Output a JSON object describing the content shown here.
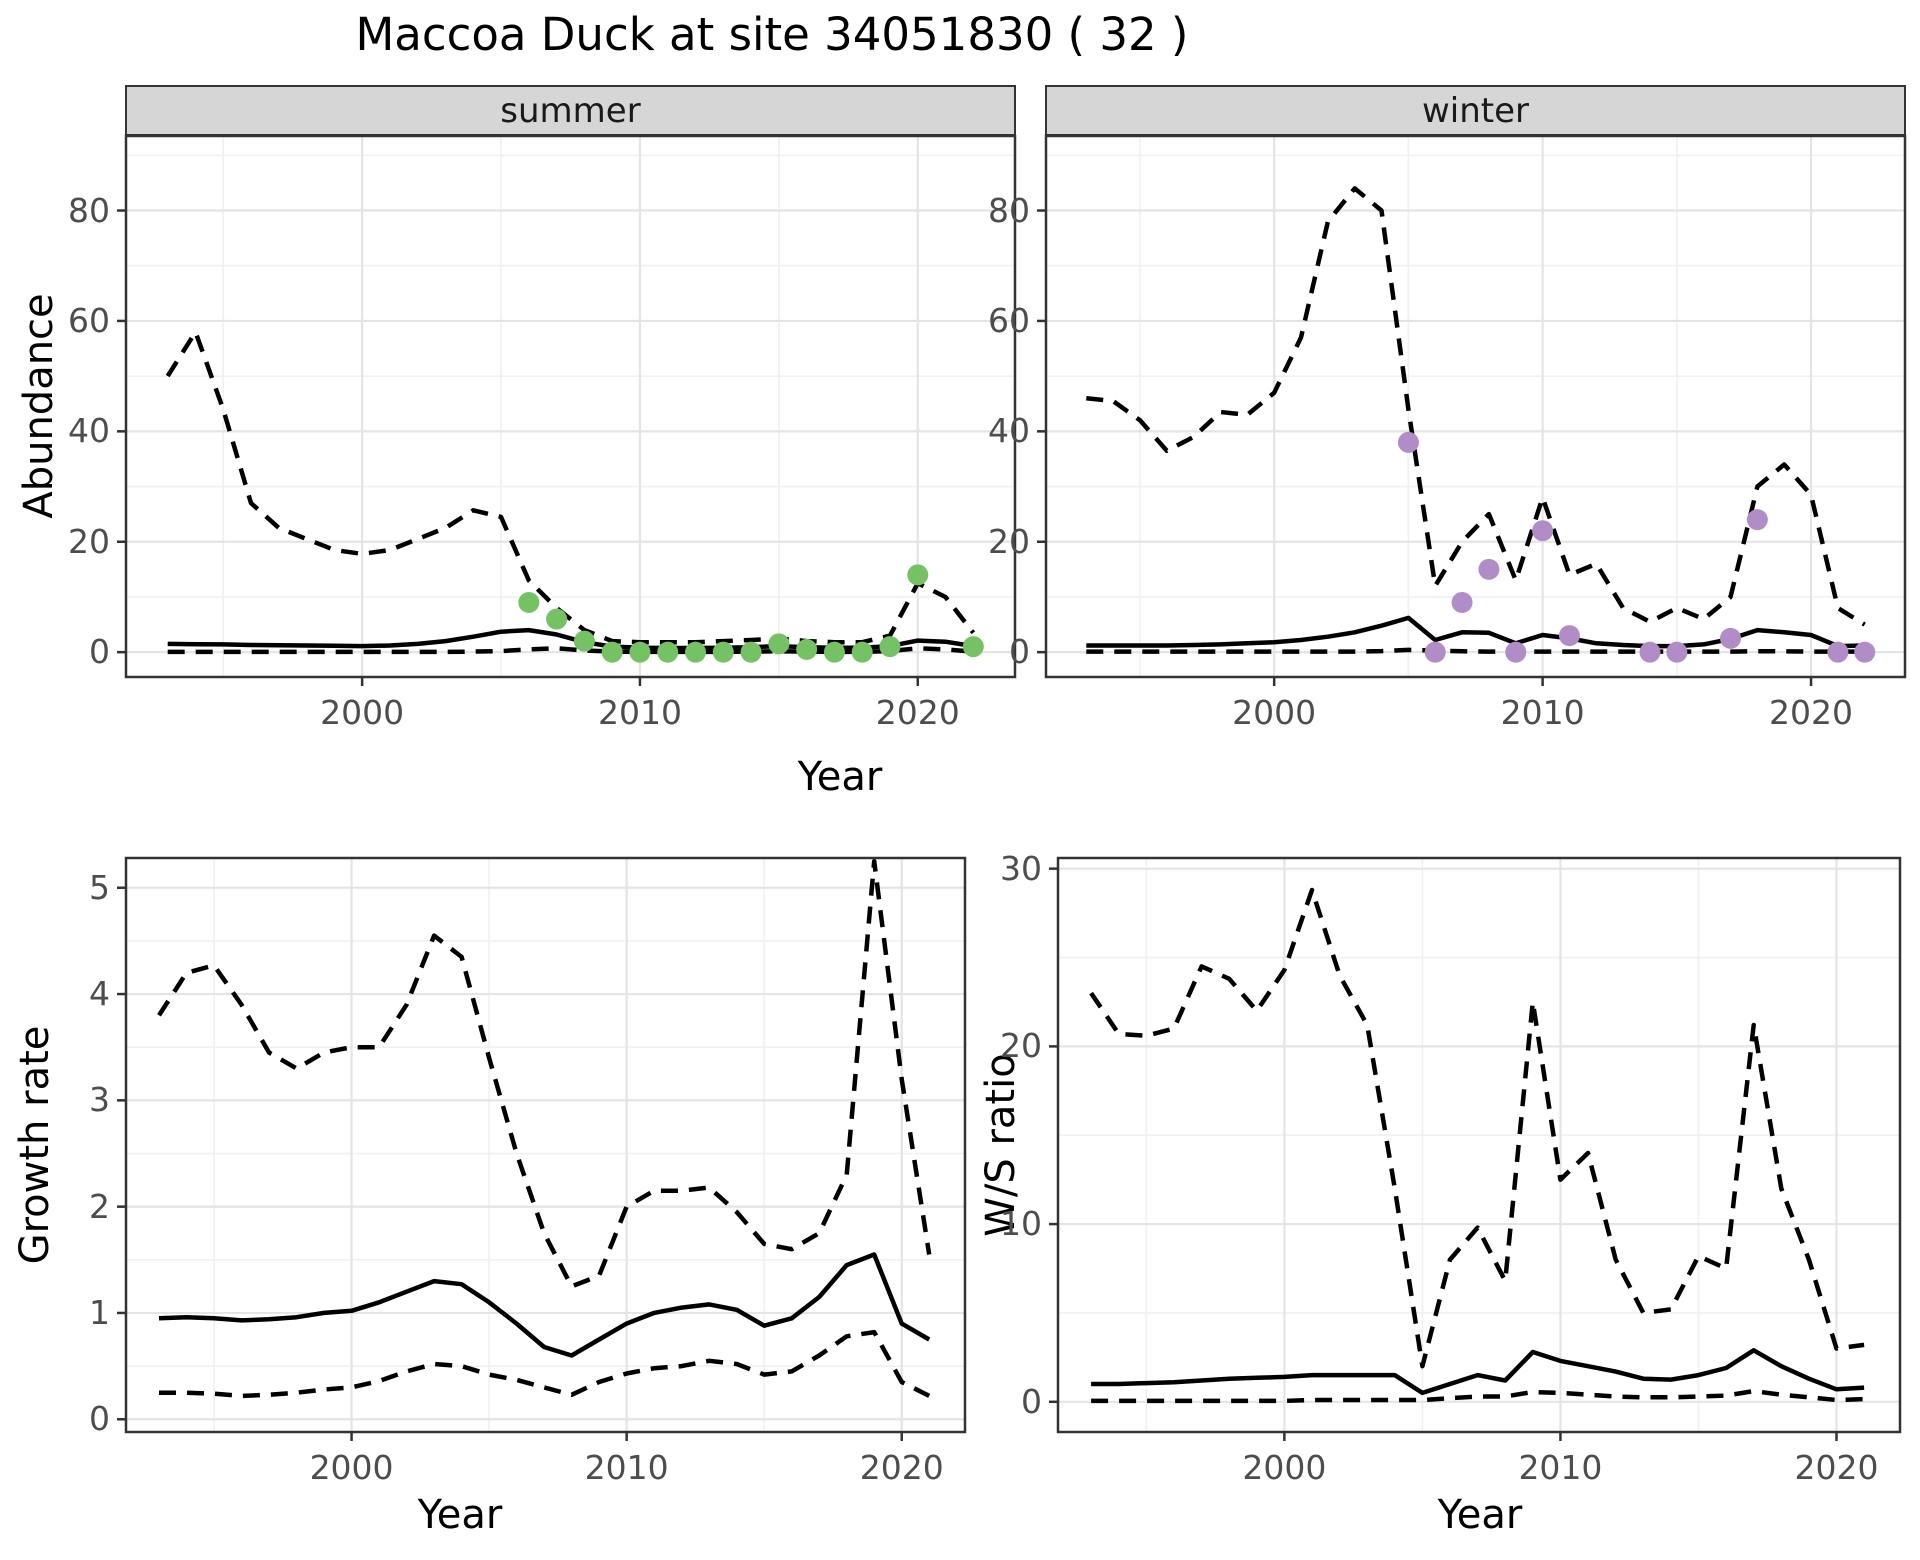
{
  "title": "Maccoa Duck at site 34051830 ( 32 )",
  "facets": {
    "summer_label": "summer",
    "winter_label": "winter"
  },
  "axis_titles": {
    "abundance": "Abundance",
    "year_top": "Year",
    "growth": "Growth rate",
    "ws": "W/S ratio",
    "year_bottom_left": "Year",
    "year_bottom_right": "Year"
  },
  "colors": {
    "summer_point": "#74c263",
    "winter_point": "#b18dc7",
    "line": "#000000",
    "grid_major": "#e4e4e4",
    "grid_minor": "#f0f0f0",
    "strip_bg": "#d6d6d6",
    "panel_border": "#333333",
    "tick_text": "#4d4d4d"
  },
  "chart_data": [
    {
      "id": "abundance_summer",
      "type": "line",
      "facet": "summer",
      "ylabel": "Abundance",
      "xlabel": "Year",
      "xlim": [
        1991.5,
        2023.5
      ],
      "ylim": [
        -4.5,
        93.5
      ],
      "xticks": [
        2000,
        2010,
        2020
      ],
      "xticks_minor": [
        1995,
        2005,
        2015
      ],
      "yticks": [
        0,
        20,
        40,
        60,
        80
      ],
      "yticks_minor": [
        10,
        30,
        50,
        70,
        90
      ],
      "x": [
        1993,
        1994,
        1995,
        1996,
        1997,
        1998,
        1999,
        2000,
        2001,
        2002,
        2003,
        2004,
        2005,
        2006,
        2007,
        2008,
        2009,
        2010,
        2011,
        2012,
        2013,
        2014,
        2015,
        2016,
        2017,
        2018,
        2019,
        2020,
        2021,
        2022
      ],
      "series": [
        {
          "name": "upper_ci",
          "style": "dashed",
          "values": [
            50,
            58,
            44,
            27,
            22.5,
            20.5,
            18.5,
            17.8,
            18.5,
            20.5,
            22.5,
            25.7,
            24.5,
            13,
            8,
            4,
            2,
            1.8,
            1.8,
            1.8,
            2,
            2.2,
            2.5,
            2,
            1.8,
            1.8,
            3,
            12.5,
            10,
            3.5
          ]
        },
        {
          "name": "median",
          "style": "solid",
          "values": [
            1.5,
            1.45,
            1.4,
            1.3,
            1.25,
            1.2,
            1.15,
            1.1,
            1.2,
            1.5,
            2,
            2.8,
            3.7,
            4,
            3.2,
            1.8,
            1,
            0.8,
            0.75,
            0.75,
            0.8,
            0.9,
            1.1,
            0.9,
            0.8,
            0.8,
            1.1,
            2.1,
            1.9,
            1.1
          ]
        },
        {
          "name": "lower_ci",
          "style": "dashed",
          "values": [
            0.05,
            0.05,
            0.05,
            0.05,
            0.05,
            0.05,
            0.05,
            0.05,
            0.05,
            0.05,
            0.05,
            0.1,
            0.2,
            0.5,
            0.7,
            0.3,
            0.1,
            0.05,
            0.05,
            0.05,
            0.05,
            0.1,
            0.15,
            0.1,
            0.05,
            0.05,
            0.2,
            0.7,
            0.5,
            0.1
          ]
        }
      ],
      "points": {
        "name": "observed_counts_summer",
        "color": "#74c263",
        "data": [
          [
            2006,
            9
          ],
          [
            2007,
            6
          ],
          [
            2008,
            2
          ],
          [
            2009,
            0
          ],
          [
            2010,
            0
          ],
          [
            2011,
            0
          ],
          [
            2012,
            0
          ],
          [
            2013,
            0
          ],
          [
            2014,
            0
          ],
          [
            2015,
            1.5
          ],
          [
            2016,
            0.5
          ],
          [
            2017,
            0
          ],
          [
            2018,
            0
          ],
          [
            2019,
            1
          ],
          [
            2020,
            14
          ],
          [
            2022,
            1
          ]
        ]
      }
    },
    {
      "id": "abundance_winter",
      "type": "line",
      "facet": "winter",
      "ylabel": "Abundance",
      "xlabel": "Year",
      "xlim": [
        1991.5,
        2023.5
      ],
      "ylim": [
        -4.5,
        93.5
      ],
      "xticks": [
        2000,
        2010,
        2020
      ],
      "xticks_minor": [
        1995,
        2005,
        2015
      ],
      "yticks": [
        0,
        20,
        40,
        60,
        80
      ],
      "yticks_minor": [
        10,
        30,
        50,
        70,
        90
      ],
      "x": [
        1993,
        1994,
        1995,
        1996,
        1997,
        1998,
        1999,
        2000,
        2001,
        2002,
        2003,
        2004,
        2005,
        2006,
        2007,
        2008,
        2009,
        2010,
        2011,
        2012,
        2013,
        2014,
        2015,
        2016,
        2017,
        2018,
        2019,
        2020,
        2021,
        2022
      ],
      "series": [
        {
          "name": "upper_ci",
          "style": "dashed",
          "values": [
            46,
            45.5,
            42,
            36.5,
            39,
            43.5,
            43,
            47,
            57,
            78,
            84,
            80,
            44,
            12,
            20,
            25,
            13,
            28,
            14,
            16,
            8,
            5.5,
            8,
            6,
            10,
            30,
            34,
            28.5,
            8,
            5
          ]
        },
        {
          "name": "median",
          "style": "solid",
          "values": [
            1.2,
            1.2,
            1.2,
            1.2,
            1.3,
            1.4,
            1.6,
            1.8,
            2.2,
            2.8,
            3.6,
            4.8,
            6.2,
            2.2,
            3.6,
            3.5,
            1.6,
            3.1,
            2.5,
            1.6,
            1.3,
            1.1,
            1.1,
            1.4,
            2.4,
            4,
            3.6,
            3.1,
            1.1,
            1.2
          ]
        },
        {
          "name": "lower_ci",
          "style": "dashed",
          "values": [
            0.1,
            0.1,
            0.1,
            0.1,
            0.1,
            0.1,
            0.1,
            0.1,
            0.1,
            0.1,
            0.1,
            0.2,
            0.4,
            0.3,
            0.15,
            0.1,
            0.1,
            0.1,
            0.1,
            0.1,
            0.1,
            0.1,
            0.1,
            0.1,
            0.1,
            0.15,
            0.15,
            0.1,
            0.1,
            0.1
          ]
        }
      ],
      "points": {
        "name": "observed_counts_winter",
        "color": "#b18dc7",
        "data": [
          [
            2005,
            38
          ],
          [
            2006,
            0
          ],
          [
            2007,
            9
          ],
          [
            2008,
            15
          ],
          [
            2009,
            0
          ],
          [
            2010,
            22
          ],
          [
            2011,
            3
          ],
          [
            2014,
            0
          ],
          [
            2015,
            0
          ],
          [
            2017,
            2.5
          ],
          [
            2018,
            24
          ],
          [
            2021,
            0
          ],
          [
            2022,
            0
          ]
        ]
      }
    },
    {
      "id": "growth_rate",
      "type": "line",
      "ylabel": "Growth rate",
      "xlabel": "Year",
      "xlim": [
        1991.8,
        2022.3
      ],
      "ylim": [
        -0.12,
        5.28
      ],
      "xticks": [
        2000,
        2010,
        2020
      ],
      "xticks_minor": [
        1995,
        2005,
        2015
      ],
      "yticks": [
        0,
        1,
        2,
        3,
        4,
        5
      ],
      "yticks_minor": [
        0.5,
        1.5,
        2.5,
        3.5,
        4.5
      ],
      "x": [
        1993,
        1994,
        1995,
        1996,
        1997,
        1998,
        1999,
        2000,
        2001,
        2002,
        2003,
        2004,
        2005,
        2006,
        2007,
        2008,
        2009,
        2010,
        2011,
        2012,
        2013,
        2014,
        2015,
        2016,
        2017,
        2018,
        2019,
        2020,
        2021
      ],
      "series": [
        {
          "name": "upper_ci",
          "style": "dashed",
          "values": [
            3.8,
            4.2,
            4.27,
            3.9,
            3.45,
            3.3,
            3.45,
            3.5,
            3.5,
            3.9,
            4.55,
            4.35,
            3.4,
            2.5,
            1.75,
            1.25,
            1.35,
            2,
            2.15,
            2.15,
            2.18,
            1.95,
            1.65,
            1.6,
            1.75,
            2.3,
            5.25,
            3.2,
            1.55
          ]
        },
        {
          "name": "median",
          "style": "solid",
          "values": [
            0.95,
            0.96,
            0.95,
            0.93,
            0.94,
            0.96,
            1,
            1.02,
            1.1,
            1.2,
            1.3,
            1.27,
            1.1,
            0.9,
            0.68,
            0.6,
            0.75,
            0.9,
            1,
            1.05,
            1.08,
            1.03,
            0.88,
            0.95,
            1.15,
            1.45,
            1.55,
            0.9,
            0.75
          ]
        },
        {
          "name": "lower_ci",
          "style": "dashed",
          "values": [
            0.25,
            0.25,
            0.24,
            0.22,
            0.23,
            0.25,
            0.28,
            0.3,
            0.36,
            0.45,
            0.52,
            0.5,
            0.42,
            0.37,
            0.3,
            0.23,
            0.35,
            0.43,
            0.48,
            0.5,
            0.55,
            0.52,
            0.42,
            0.45,
            0.6,
            0.78,
            0.82,
            0.35,
            0.22
          ]
        }
      ]
    },
    {
      "id": "ws_ratio",
      "type": "line",
      "ylabel": "W/S ratio",
      "xlabel": "Year",
      "xlim": [
        1991.8,
        2022.3
      ],
      "ylim": [
        -1.7,
        30.6
      ],
      "xticks": [
        2000,
        2010,
        2020
      ],
      "xticks_minor": [
        1995,
        2005,
        2015
      ],
      "yticks": [
        0,
        10,
        20,
        30
      ],
      "yticks_minor": [
        5,
        15,
        25
      ],
      "x": [
        1993,
        1994,
        1995,
        1996,
        1997,
        1998,
        1999,
        2000,
        2001,
        2002,
        2003,
        2004,
        2005,
        2006,
        2007,
        2008,
        2009,
        2010,
        2011,
        2012,
        2013,
        2014,
        2015,
        2016,
        2017,
        2018,
        2019,
        2020,
        2021
      ],
      "series": [
        {
          "name": "upper_ci",
          "style": "dashed",
          "values": [
            23,
            20.7,
            20.6,
            21,
            24.5,
            23.8,
            22,
            24.3,
            28.8,
            24,
            21.2,
            12,
            2,
            8,
            9.8,
            6.8,
            22.5,
            12.5,
            14,
            8,
            5,
            5.2,
            8.2,
            7.5,
            21.2,
            12,
            8,
            3,
            3.2
          ]
        },
        {
          "name": "median",
          "style": "solid",
          "values": [
            1,
            1,
            1.05,
            1.1,
            1.2,
            1.3,
            1.35,
            1.4,
            1.5,
            1.5,
            1.5,
            1.5,
            0.5,
            1,
            1.5,
            1.2,
            2.8,
            2.3,
            2,
            1.7,
            1.3,
            1.25,
            1.5,
            1.9,
            2.9,
            2,
            1.3,
            0.7,
            0.8
          ]
        },
        {
          "name": "lower_ci",
          "style": "dashed",
          "values": [
            0.05,
            0.05,
            0.05,
            0.05,
            0.05,
            0.05,
            0.05,
            0.05,
            0.1,
            0.1,
            0.1,
            0.1,
            0.1,
            0.2,
            0.3,
            0.3,
            0.55,
            0.5,
            0.4,
            0.3,
            0.25,
            0.25,
            0.3,
            0.35,
            0.6,
            0.4,
            0.25,
            0.1,
            0.15
          ]
        }
      ]
    }
  ]
}
